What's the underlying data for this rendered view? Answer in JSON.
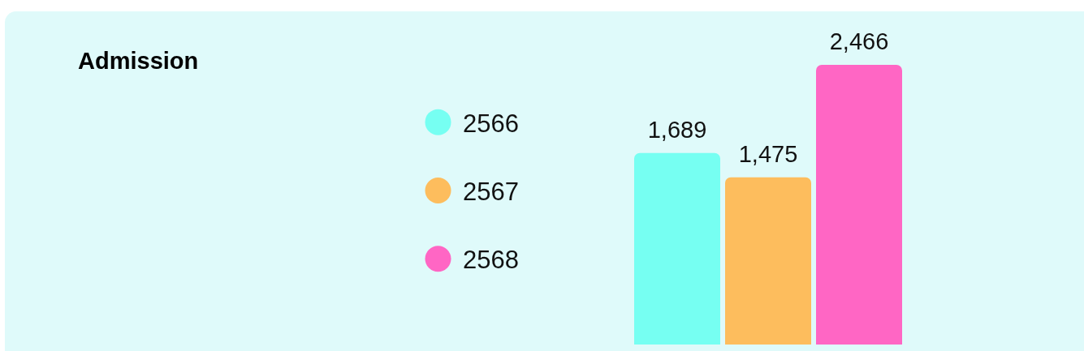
{
  "chart_data": {
    "type": "bar",
    "title": "Admission",
    "categories": [
      null
    ],
    "series": [
      {
        "name": "2566",
        "color": "#76fff2",
        "values": [
          1689
        ],
        "value_labels": [
          "1,689"
        ]
      },
      {
        "name": "2567",
        "color": "#fdbd5d",
        "values": [
          1475
        ],
        "value_labels": [
          "1,475"
        ]
      },
      {
        "name": "2568",
        "color": "#ff66c4",
        "values": [
          2466
        ],
        "value_labels": [
          "2,466"
        ]
      }
    ],
    "legend": "left"
  }
}
